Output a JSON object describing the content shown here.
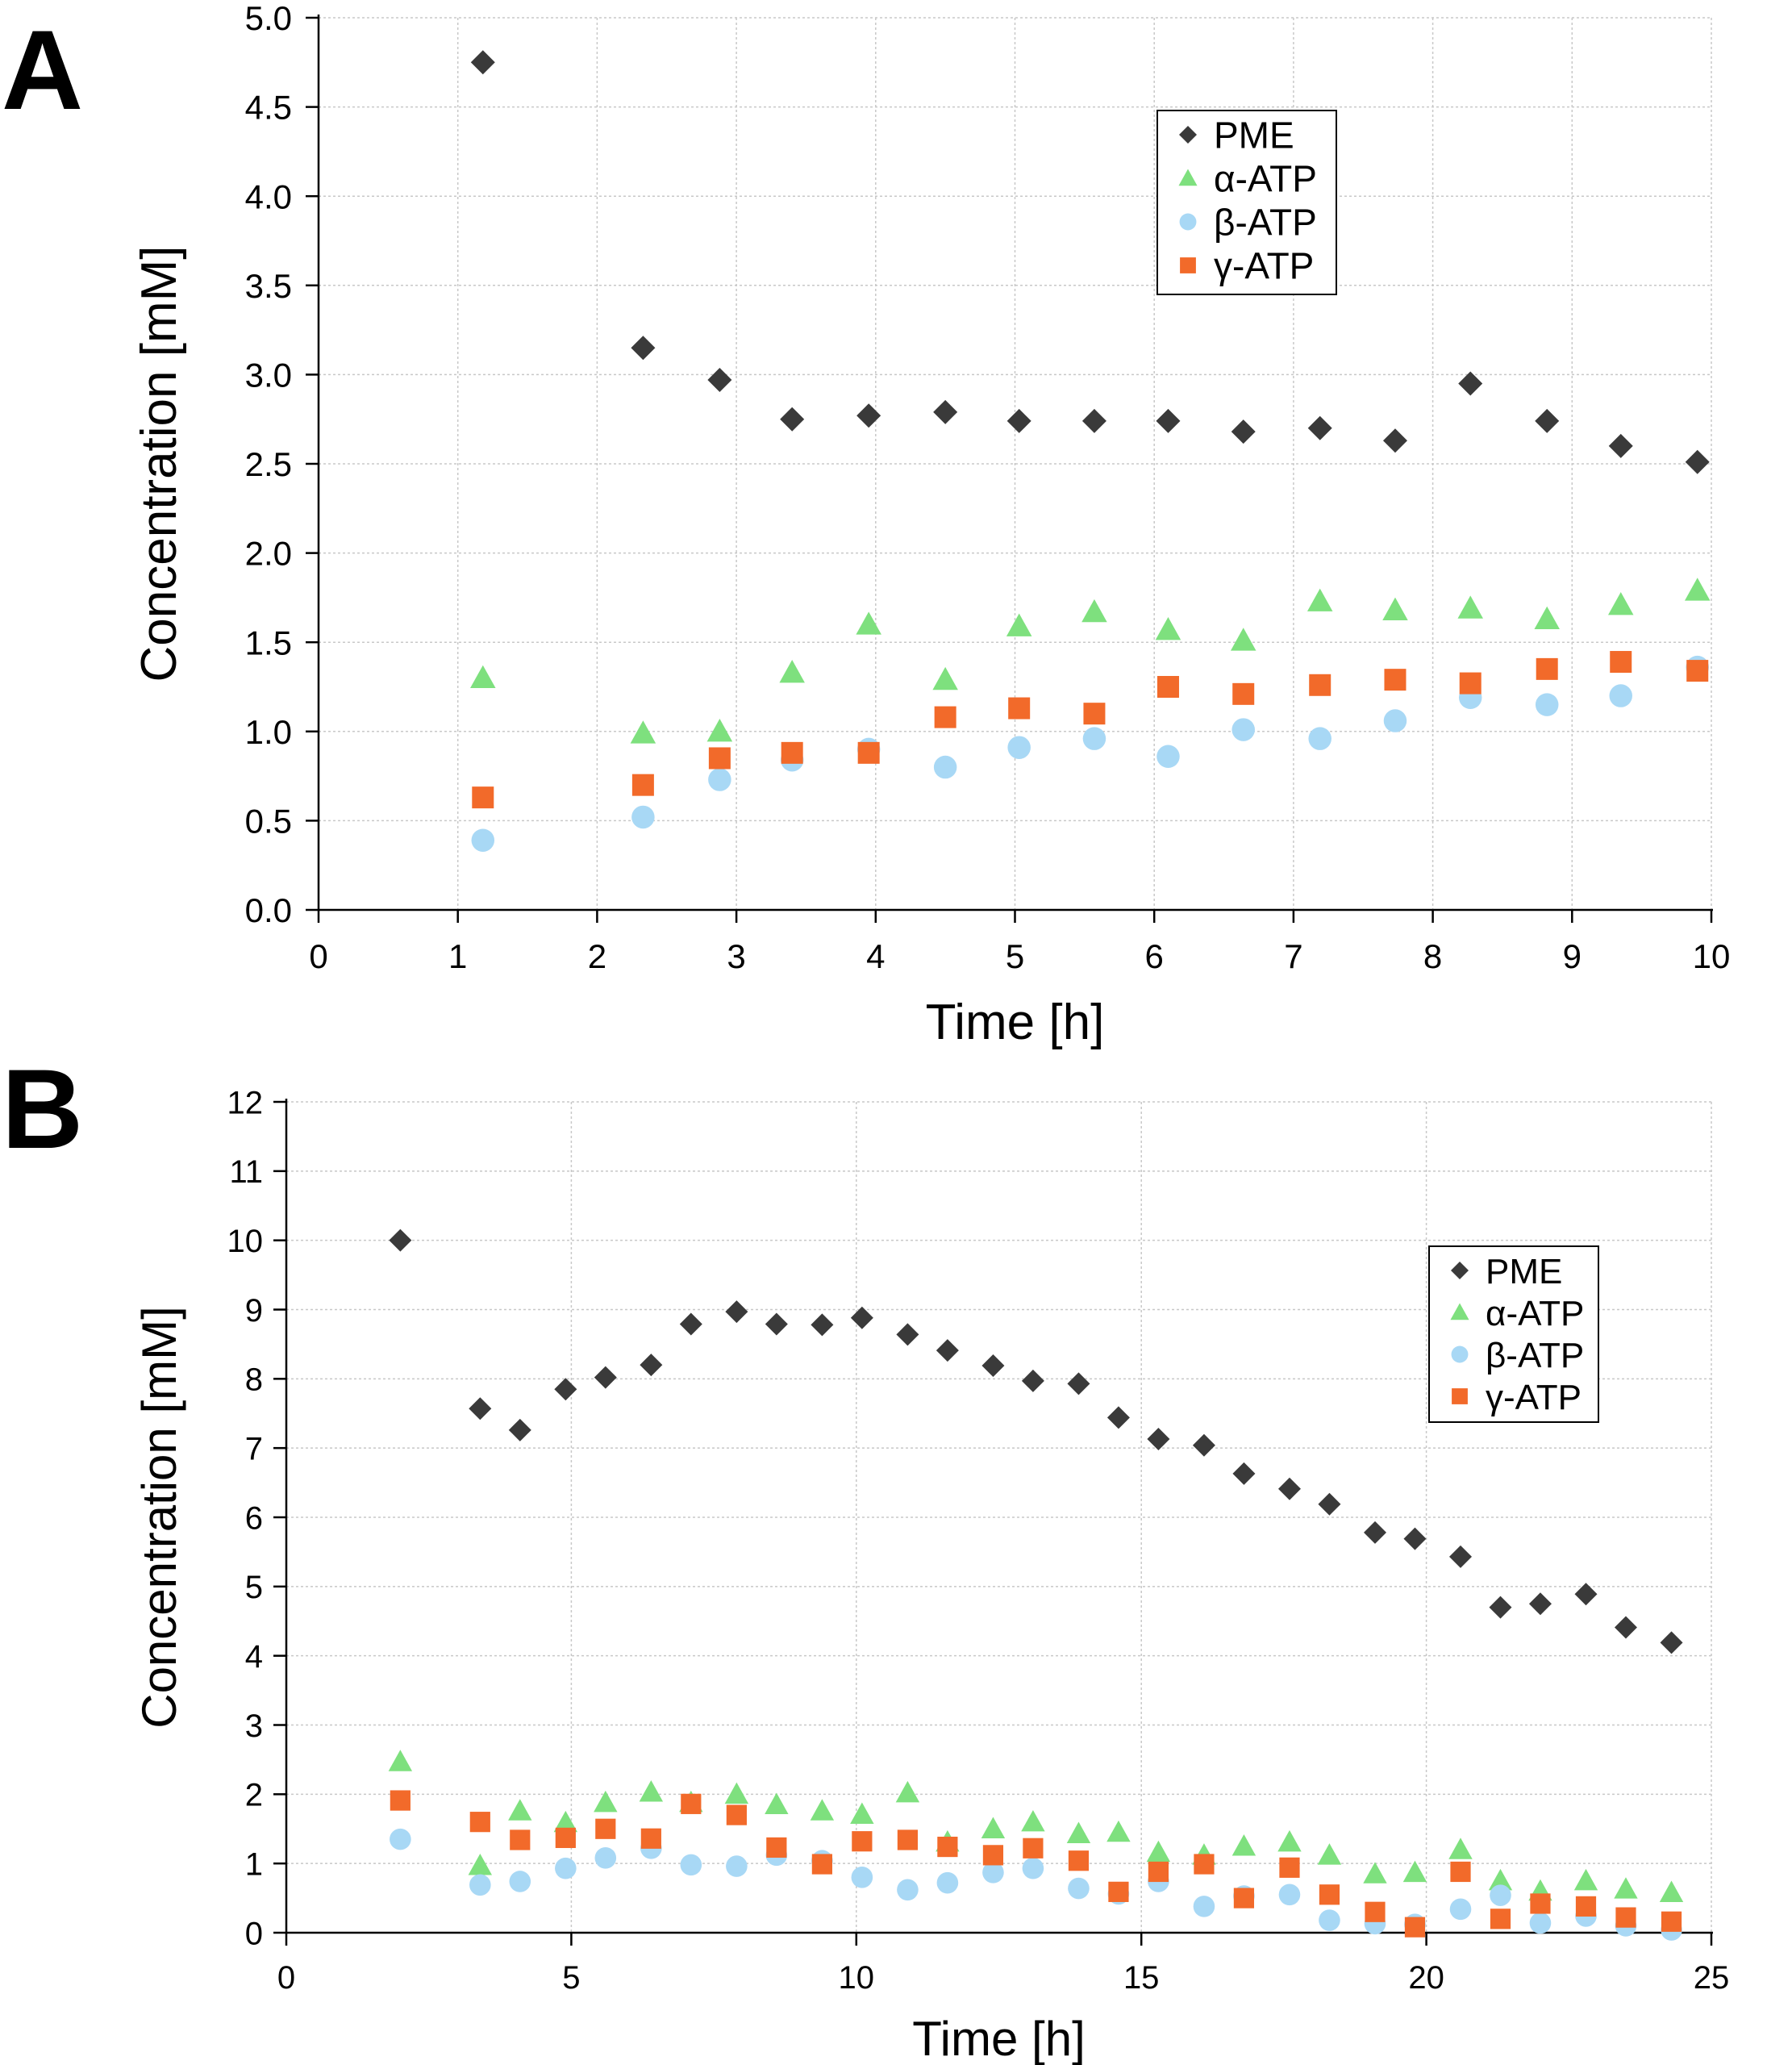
{
  "chart_data": [
    {
      "panel": "A",
      "type": "scatter",
      "xlabel": "Time [h]",
      "ylabel": "Concentration [mM]",
      "xlim": [
        0,
        10
      ],
      "ylim": [
        0,
        5
      ],
      "xticks": [
        "0",
        "1",
        "2",
        "3",
        "4",
        "5",
        "6",
        "7",
        "8",
        "9",
        "10"
      ],
      "yticks": [
        "0.0",
        "0.5",
        "1.0",
        "1.5",
        "2.0",
        "2.5",
        "3.0",
        "3.5",
        "4.0",
        "4.5",
        "5.0"
      ],
      "grid": true,
      "legend_position": "top-right",
      "series": [
        {
          "name": "PME",
          "marker": "diamond",
          "color": "#3a3a3a",
          "x": [
            1.18,
            2.33,
            2.88,
            3.4,
            3.95,
            4.5,
            5.03,
            5.57,
            6.1,
            6.64,
            7.19,
            7.73,
            8.27,
            8.82,
            9.35,
            9.9
          ],
          "y": [
            4.75,
            3.15,
            2.97,
            2.75,
            2.77,
            2.79,
            2.74,
            2.74,
            2.74,
            2.68,
            2.7,
            2.63,
            2.95,
            2.74,
            2.6,
            2.51
          ]
        },
        {
          "name": "α-ATP",
          "marker": "triangle",
          "color": "#7ee07e",
          "x": [
            1.18,
            2.33,
            2.88,
            3.4,
            3.95,
            4.5,
            5.03,
            5.57,
            6.1,
            6.64,
            7.19,
            7.73,
            8.27,
            8.82,
            9.35,
            9.9
          ],
          "y": [
            1.3,
            0.99,
            1.0,
            1.33,
            1.6,
            1.29,
            1.59,
            1.67,
            1.57,
            1.51,
            1.73,
            1.68,
            1.69,
            1.63,
            1.71,
            1.79
          ]
        },
        {
          "name": "β-ATP",
          "marker": "circle",
          "color": "#a8d8f5",
          "x": [
            1.18,
            2.33,
            2.88,
            3.4,
            3.95,
            4.5,
            5.03,
            5.57,
            6.1,
            6.64,
            7.19,
            7.73,
            8.27,
            8.82,
            9.35,
            9.9
          ],
          "y": [
            0.39,
            0.52,
            0.73,
            0.84,
            0.9,
            0.8,
            0.91,
            0.96,
            0.86,
            1.01,
            0.96,
            1.06,
            1.19,
            1.15,
            1.2,
            1.36
          ]
        },
        {
          "name": "γ-ATP",
          "marker": "square",
          "color": "#f26a2a",
          "x": [
            1.18,
            2.33,
            2.88,
            3.4,
            3.95,
            4.5,
            5.03,
            5.57,
            6.1,
            6.64,
            7.19,
            7.73,
            8.27,
            8.82,
            9.35,
            9.9
          ],
          "y": [
            0.63,
            0.7,
            0.85,
            0.88,
            0.88,
            1.08,
            1.13,
            1.1,
            1.25,
            1.21,
            1.26,
            1.29,
            1.27,
            1.35,
            1.39,
            1.34
          ]
        }
      ]
    },
    {
      "panel": "B",
      "type": "scatter",
      "xlabel": "Time [h]",
      "ylabel": "Concentration [mM]",
      "xlim": [
        0,
        25
      ],
      "ylim": [
        0,
        12
      ],
      "xticks": [
        "0",
        "5",
        "10",
        "15",
        "20",
        "25"
      ],
      "yticks": [
        "0",
        "1",
        "2",
        "3",
        "4",
        "5",
        "6",
        "7",
        "8",
        "9",
        "10",
        "11",
        "12"
      ],
      "grid": true,
      "legend_position": "top-right",
      "series": [
        {
          "name": "PME",
          "marker": "diamond",
          "color": "#3a3a3a",
          "x": [
            2.0,
            3.4,
            4.1,
            4.9,
            5.6,
            6.4,
            7.1,
            7.9,
            8.6,
            9.4,
            10.1,
            10.9,
            11.6,
            12.4,
            13.1,
            13.9,
            14.6,
            15.3,
            16.1,
            16.8,
            17.6,
            18.3,
            19.1,
            19.8,
            20.6,
            21.3,
            22.0,
            22.8,
            23.5,
            24.3
          ],
          "y": [
            10.0,
            7.57,
            7.26,
            7.85,
            8.02,
            8.2,
            8.79,
            8.97,
            8.79,
            8.78,
            8.88,
            8.64,
            8.41,
            8.19,
            7.97,
            7.93,
            7.44,
            7.13,
            7.04,
            6.63,
            6.41,
            6.19,
            5.78,
            5.69,
            5.43,
            4.7,
            4.75,
            4.89,
            4.41,
            4.19
          ]
        },
        {
          "name": "α-ATP",
          "marker": "triangle",
          "color": "#7ee07e",
          "x": [
            2.0,
            3.4,
            4.1,
            4.9,
            5.6,
            6.4,
            7.1,
            7.9,
            8.6,
            9.4,
            10.1,
            10.9,
            11.6,
            12.4,
            13.1,
            13.9,
            14.6,
            15.3,
            16.1,
            16.8,
            17.6,
            18.3,
            19.1,
            19.8,
            20.6,
            21.3,
            22.0,
            22.8,
            23.5,
            24.3
          ],
          "y": [
            2.47,
            0.97,
            1.76,
            1.59,
            1.88,
            2.03,
            1.88,
            2.0,
            1.85,
            1.76,
            1.71,
            2.02,
            1.31,
            1.5,
            1.6,
            1.43,
            1.45,
            1.16,
            1.12,
            1.25,
            1.31,
            1.12,
            0.85,
            0.87,
            1.2,
            0.75,
            0.6,
            0.75,
            0.63,
            0.58
          ]
        },
        {
          "name": "β-ATP",
          "marker": "circle",
          "color": "#a8d8f5",
          "x": [
            2.0,
            3.4,
            4.1,
            4.9,
            5.6,
            6.4,
            7.1,
            7.9,
            8.6,
            9.4,
            10.1,
            10.9,
            11.6,
            12.4,
            13.1,
            13.9,
            14.6,
            15.3,
            16.1,
            16.8,
            17.6,
            18.3,
            19.1,
            19.8,
            20.6,
            21.3,
            22.0,
            22.8,
            23.5,
            24.3
          ],
          "y": [
            1.35,
            0.69,
            0.74,
            0.93,
            1.08,
            1.22,
            0.98,
            0.96,
            1.12,
            1.04,
            0.8,
            0.62,
            0.72,
            0.87,
            0.93,
            0.64,
            0.56,
            0.74,
            0.38,
            0.53,
            0.55,
            0.18,
            0.13,
            0.12,
            0.34,
            0.54,
            0.14,
            0.24,
            0.1,
            0.04
          ]
        },
        {
          "name": "γ-ATP",
          "marker": "square",
          "color": "#f26a2a",
          "x": [
            2.0,
            3.4,
            4.1,
            4.9,
            5.6,
            6.4,
            7.1,
            7.9,
            8.6,
            9.4,
            10.1,
            10.9,
            11.6,
            12.4,
            13.1,
            13.9,
            14.6,
            15.3,
            16.1,
            16.8,
            17.6,
            18.3,
            19.1,
            19.8,
            20.6,
            21.3,
            22.0,
            22.8,
            23.5,
            24.3
          ],
          "y": [
            1.91,
            1.6,
            1.34,
            1.37,
            1.5,
            1.36,
            1.86,
            1.7,
            1.23,
            0.99,
            1.32,
            1.34,
            1.24,
            1.12,
            1.22,
            1.04,
            0.59,
            0.88,
            0.99,
            0.5,
            0.94,
            0.55,
            0.3,
            0.08,
            0.88,
            0.2,
            0.42,
            0.38,
            0.22,
            0.16
          ]
        }
      ]
    }
  ]
}
